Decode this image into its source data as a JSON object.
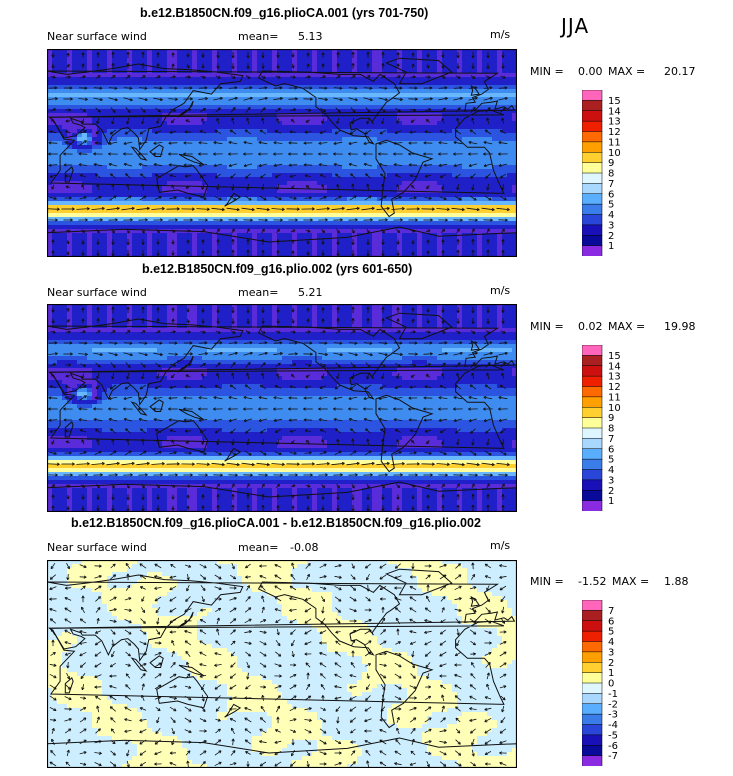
{
  "season": "JJA",
  "panels": [
    {
      "title": "b.e12.B1850CN.f09_g16.plioCA.001 (yrs 701-750)",
      "variable": "Near surface wind",
      "mean_label": "mean=",
      "mean_value": "5.13",
      "units": "m/s",
      "min_label": "MIN =",
      "min_value": "0.00",
      "max_label": "MAX =",
      "max_value": "20.17",
      "colorbar_labels": [
        "15",
        "14",
        "13",
        "12",
        "11",
        "10",
        "9",
        "8",
        "7",
        "6",
        "5",
        "4",
        "3",
        "2",
        "1"
      ],
      "colorbar_colors": [
        "#ff66bb",
        "#aa2020",
        "#cc1010",
        "#ee2000",
        "#ff6a00",
        "#ffa000",
        "#ffd030",
        "#ffff99",
        "#ddf6ff",
        "#a8d8ff",
        "#5aaeff",
        "#3a7ce8",
        "#2a46d8",
        "#1a10b8",
        "#0a0a9a",
        "#8a2be2"
      ]
    },
    {
      "title": "b.e12.B1850CN.f09_g16.plio.002 (yrs 601-650)",
      "variable": "Near surface wind",
      "mean_label": "mean=",
      "mean_value": "5.21",
      "units": "m/s",
      "min_label": "MIN =",
      "min_value": "0.02",
      "max_label": "MAX =",
      "max_value": "19.98",
      "colorbar_labels": [
        "15",
        "14",
        "13",
        "12",
        "11",
        "10",
        "9",
        "8",
        "7",
        "6",
        "5",
        "4",
        "3",
        "2",
        "1"
      ],
      "colorbar_colors": [
        "#ff66bb",
        "#aa2020",
        "#cc1010",
        "#ee2000",
        "#ff6a00",
        "#ffa000",
        "#ffd030",
        "#ffff99",
        "#ddf6ff",
        "#a8d8ff",
        "#5aaeff",
        "#3a7ce8",
        "#2a46d8",
        "#1a10b8",
        "#0a0a9a",
        "#8a2be2"
      ]
    },
    {
      "title": "b.e12.B1850CN.f09_g16.plioCA.001 - b.e12.B1850CN.f09_g16.plio.002",
      "variable": "Near surface wind",
      "mean_label": "mean=",
      "mean_value": "-0.08",
      "units": "m/s",
      "min_label": "MIN =",
      "min_value": "-1.52",
      "max_label": "MAX =",
      "max_value": "1.88",
      "colorbar_labels": [
        "7",
        "6",
        "5",
        "4",
        "3",
        "2",
        "1",
        "0",
        "-1",
        "-2",
        "-3",
        "-4",
        "-5",
        "-6",
        "-7"
      ],
      "colorbar_colors": [
        "#ff66bb",
        "#aa2020",
        "#cc1010",
        "#ee2000",
        "#ff6a00",
        "#ffa000",
        "#ffd030",
        "#ffff99",
        "#ddf6ff",
        "#a8d8ff",
        "#5aaeff",
        "#3a7ce8",
        "#2a46d8",
        "#1a10b8",
        "#0a0a9a",
        "#8a2be2"
      ]
    }
  ],
  "colors": {
    "map_border": "#000000",
    "continent_line": "#111111",
    "arrow": "#111111"
  }
}
